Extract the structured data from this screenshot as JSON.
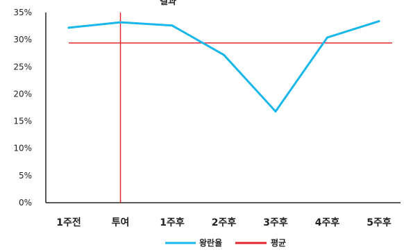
{
  "chart_data": {
    "type": "line",
    "title": "결과",
    "categories": [
      "1주전",
      "투여",
      "1주후",
      "2주후",
      "3주후",
      "4주후",
      "5주후"
    ],
    "series": [
      {
        "name": "왕란율",
        "values": [
          32.2,
          33.2,
          32.6,
          27.2,
          16.8,
          30.4,
          33.4
        ],
        "color": "#1ab7ea"
      }
    ],
    "average": {
      "name": "평균",
      "value": 29.4,
      "color": "#e3262e"
    },
    "marker_category": "투여",
    "yticks": [
      "0%",
      "5%",
      "10%",
      "15%",
      "20%",
      "25%",
      "30%",
      "35%"
    ],
    "ylim": [
      0,
      35
    ],
    "grid": false,
    "legend_position": "bottom"
  }
}
